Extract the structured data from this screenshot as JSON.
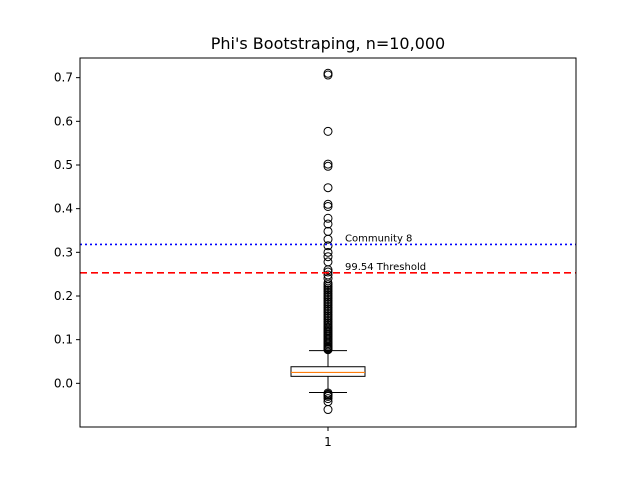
{
  "chart_data": {
    "type": "boxplot",
    "title": "Phi's Bootstraping, n=10,000",
    "xlabel": "",
    "ylabel": "",
    "categories": [
      "1"
    ],
    "ylim": [
      -0.1,
      0.745
    ],
    "yticks": [
      0.0,
      0.1,
      0.2,
      0.3,
      0.4,
      0.5,
      0.6,
      0.7
    ],
    "ytick_labels": [
      "0.0",
      "0.1",
      "0.2",
      "0.3",
      "0.4",
      "0.5",
      "0.6",
      "0.7"
    ],
    "grid": false,
    "box": {
      "q1": 0.016,
      "median": 0.025,
      "q3": 0.038,
      "whisker_low": -0.021,
      "whisker_high": 0.075,
      "color": "#000000",
      "median_color": "#ff7f0e"
    },
    "outliers": [
      -0.06,
      -0.042,
      -0.035,
      -0.03,
      -0.027,
      -0.025,
      -0.022,
      0.077,
      0.079,
      0.081,
      0.083,
      0.085,
      0.088,
      0.091,
      0.094,
      0.097,
      0.1,
      0.103,
      0.106,
      0.109,
      0.112,
      0.115,
      0.118,
      0.121,
      0.124,
      0.127,
      0.13,
      0.134,
      0.138,
      0.142,
      0.146,
      0.15,
      0.154,
      0.158,
      0.162,
      0.166,
      0.17,
      0.174,
      0.178,
      0.182,
      0.186,
      0.19,
      0.194,
      0.198,
      0.202,
      0.206,
      0.21,
      0.214,
      0.218,
      0.222,
      0.226,
      0.23,
      0.24,
      0.248,
      0.255,
      0.26,
      0.278,
      0.29,
      0.3,
      0.315,
      0.33,
      0.348,
      0.365,
      0.378,
      0.405,
      0.41,
      0.448,
      0.497,
      0.502,
      0.577,
      0.706,
      0.71
    ],
    "annotations": [
      {
        "label": "Community 8",
        "y": 0.318,
        "style": "dotted",
        "color": "#0000ff"
      },
      {
        "label": "99.54 Threshold",
        "y": 0.253,
        "style": "dashed",
        "color": "#ff0000"
      }
    ]
  }
}
